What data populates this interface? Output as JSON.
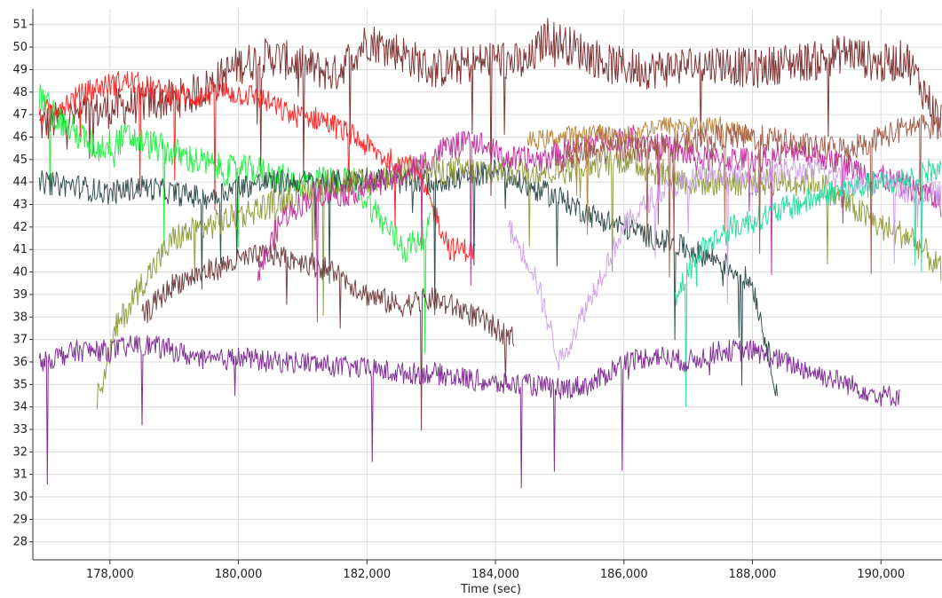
{
  "chart_data": {
    "type": "line",
    "title": "",
    "xlabel": "Time (sec)",
    "ylabel": "",
    "xlim": [
      176800,
      190950
    ],
    "ylim": [
      27.2,
      51.7
    ],
    "grid": true,
    "legend": "none",
    "x_ticks": [
      178000,
      180000,
      182000,
      184000,
      186000,
      188000,
      190000
    ],
    "x_tick_labels": [
      "178,000",
      "180,000",
      "182,000",
      "184,000",
      "186,000",
      "188,000",
      "190,000"
    ],
    "y_ticks": [
      28,
      29,
      30,
      31,
      32,
      33,
      34,
      35,
      36,
      37,
      38,
      39,
      40,
      41,
      42,
      43,
      44,
      45,
      46,
      47,
      48,
      49,
      50,
      51
    ],
    "series": [
      {
        "color": "#7a2b2b",
        "x": [
          176900,
          177500,
          178500,
          179200,
          179500,
          180000,
          180500,
          181000,
          181500,
          182000,
          182500,
          183000,
          183500,
          184000,
          184500,
          184800,
          185200,
          185800,
          186400,
          187000,
          187500,
          188000,
          188500,
          189000,
          189500,
          190000,
          190400,
          190950
        ],
        "y": [
          46.5,
          47.0,
          47.5,
          47.8,
          48.2,
          49.2,
          49.6,
          49.2,
          48.8,
          50.3,
          49.8,
          49.0,
          49.2,
          49.5,
          49.2,
          50.5,
          50.0,
          49.2,
          49.0,
          49.2,
          49.3,
          49.0,
          49.3,
          49.4,
          49.8,
          49.2,
          49.5,
          46.5
        ],
        "noise": 1.8
      },
      {
        "color": "#ff2020",
        "x": [
          176900,
          177300,
          177800,
          178300,
          178800,
          179300,
          179800,
          180300,
          180800,
          181300,
          181800,
          182300,
          182700,
          183000,
          183300,
          183700
        ],
        "y": [
          47.0,
          47.5,
          48.2,
          48.5,
          48.0,
          47.8,
          48.0,
          47.8,
          47.0,
          46.8,
          46.0,
          45.0,
          44.8,
          43.0,
          41.0,
          41.0
        ],
        "noise": 1.1
      },
      {
        "color": "#20ee40",
        "x": [
          176900,
          177300,
          177800,
          178300,
          178800,
          179300,
          179800,
          180300,
          180800,
          181300,
          181800,
          182300,
          182600,
          183000
        ],
        "y": [
          47.8,
          46.5,
          45.5,
          46.0,
          45.5,
          45.0,
          44.5,
          44.5,
          44.0,
          44.0,
          44.0,
          42.0,
          41.0,
          42.0
        ],
        "noise": 1.4
      },
      {
        "color": "#2d4a48",
        "x": [
          176900,
          177500,
          178000,
          178500,
          179000,
          179500,
          180000,
          180500,
          181000,
          181500,
          182000,
          182500,
          183000,
          183500,
          184000,
          184500,
          185000,
          185500,
          186000,
          186500,
          187000,
          187500,
          188000,
          188400
        ],
        "y": [
          44.0,
          43.8,
          43.5,
          43.8,
          43.5,
          43.3,
          43.8,
          44.0,
          44.0,
          44.0,
          44.2,
          44.0,
          44.0,
          44.2,
          44.5,
          43.8,
          43.3,
          42.5,
          42.0,
          41.5,
          41.0,
          40.5,
          39.5,
          34.5
        ],
        "noise": 1.1
      },
      {
        "color": "#8e9a3a",
        "x": [
          177800,
          178100,
          178500,
          179000,
          179500,
          180000,
          180500,
          181000,
          181500,
          182000,
          182500,
          183000,
          183500,
          184000,
          184500,
          185000,
          185500,
          186000,
          186500,
          187000,
          187500,
          188000,
          188500,
          189000,
          189500,
          190000,
          190500,
          190950
        ],
        "y": [
          34.3,
          37.5,
          39.5,
          41.5,
          42.0,
          42.5,
          43.0,
          43.5,
          44.0,
          44.0,
          44.5,
          44.5,
          44.5,
          44.5,
          44.5,
          44.5,
          44.8,
          45.0,
          44.5,
          44.0,
          44.0,
          44.0,
          44.0,
          44.0,
          43.0,
          42.0,
          41.5,
          40.0
        ],
        "noise": 1.3
      },
      {
        "color": "#6b3a3a",
        "x": [
          178500,
          179000,
          179500,
          180000,
          180500,
          181000,
          181500,
          182000,
          182500,
          183000,
          183500,
          184000,
          184300
        ],
        "y": [
          38.0,
          39.5,
          40.0,
          40.5,
          40.8,
          40.5,
          40.0,
          39.0,
          38.5,
          38.8,
          38.3,
          37.5,
          37.0
        ],
        "noise": 1.1
      },
      {
        "color": "#c02c9a",
        "x": [
          180300,
          180700,
          181200,
          181700,
          182200,
          182700,
          183200,
          183700,
          184200,
          184700,
          185200,
          185700,
          186200,
          186700,
          187200,
          187700,
          188200,
          188700,
          189200,
          189700,
          190200,
          190700,
          190950
        ],
        "y": [
          40.0,
          42.5,
          43.5,
          43.5,
          44.0,
          44.5,
          45.5,
          45.8,
          45.0,
          45.0,
          45.5,
          46.0,
          46.0,
          45.5,
          45.0,
          45.0,
          45.0,
          45.5,
          45.0,
          44.5,
          44.0,
          43.5,
          43.0
        ],
        "noise": 1.2
      },
      {
        "color": "#cfa0ec",
        "x": [
          184200,
          184600,
          185000,
          185500,
          186000,
          186500,
          187000,
          187500,
          188000,
          188500,
          189000,
          189500,
          190000,
          190500,
          190950
        ],
        "y": [
          42.0,
          40.0,
          36.0,
          39.0,
          42.0,
          43.5,
          44.0,
          44.5,
          44.0,
          44.5,
          44.5,
          44.0,
          44.0,
          43.5,
          43.5
        ],
        "noise": 1.1
      },
      {
        "color": "#b8823a",
        "x": [
          184500,
          185000,
          185500,
          186000,
          186500,
          187000,
          187500,
          188000
        ],
        "y": [
          45.8,
          46.0,
          46.2,
          46.0,
          46.5,
          46.5,
          46.5,
          46.0
        ],
        "noise": 0.9
      },
      {
        "color": "#20dda0",
        "x": [
          186800,
          187200,
          187700,
          188200,
          188700,
          189200,
          189700,
          190200,
          190700,
          190950
        ],
        "y": [
          39.0,
          41.0,
          42.0,
          42.5,
          43.0,
          43.5,
          43.8,
          44.0,
          44.5,
          44.5
        ],
        "noise": 1.2
      },
      {
        "color": "#a05a4a",
        "x": [
          185000,
          185500,
          186000,
          186500,
          187000,
          187500,
          188000,
          188500,
          189000,
          189500,
          190000,
          190500,
          190950
        ],
        "y": [
          45.0,
          45.3,
          45.5,
          45.5,
          45.8,
          46.0,
          46.0,
          45.8,
          45.5,
          45.5,
          46.0,
          46.5,
          46.5
        ],
        "noise": 1.2
      },
      {
        "color": "#7a2590",
        "x": [
          176900,
          177500,
          178000,
          178500,
          179000,
          179500,
          180000,
          180500,
          181000,
          181500,
          182000,
          182500,
          183000,
          183500,
          184000,
          184500,
          185000,
          185500,
          186000,
          186500,
          187000,
          187500,
          188000,
          188500,
          189000,
          189500,
          190000,
          190300
        ],
        "y": [
          36.0,
          36.5,
          36.5,
          36.8,
          36.5,
          36.0,
          36.2,
          36.0,
          36.0,
          35.8,
          35.7,
          35.5,
          35.5,
          35.3,
          35.0,
          35.0,
          34.8,
          35.0,
          36.0,
          36.3,
          36.0,
          36.5,
          36.5,
          36.0,
          35.5,
          35.0,
          34.5,
          34.5
        ],
        "noise": 1.0
      }
    ]
  }
}
